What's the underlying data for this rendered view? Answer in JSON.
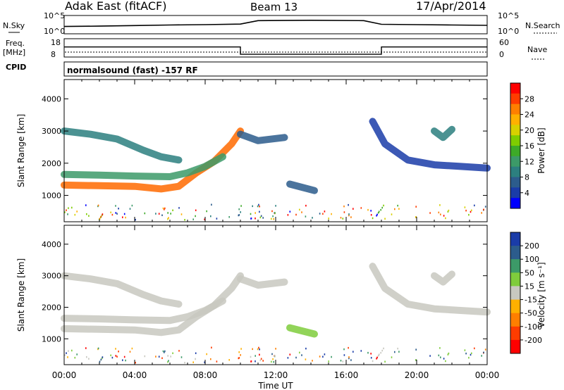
{
  "header": {
    "station": "Adak East (fitACF)",
    "beam": "Beam 13",
    "date": "17/Apr/2014"
  },
  "top_panels": {
    "nsky_label": "N.Sky",
    "nsky_ticks": [
      "10^5",
      "10^0"
    ],
    "nsearch_label": "N.Search",
    "nsearch_ticks": [
      "10^5",
      "10^0"
    ],
    "freq_label": "Freq.",
    "freq_unit": "[MHz]",
    "freq_ticks": [
      "18",
      "8"
    ],
    "nave_label": "Nave",
    "nave_ticks": [
      "60",
      "0"
    ],
    "cpid_label": "CPID",
    "cpid_text": "normalsound (fast) -157 RF"
  },
  "chart_data": [
    {
      "type": "heatmap",
      "name": "power",
      "ylabel": "Slant Range [km]",
      "yticks": [
        "4000",
        "3000",
        "2000",
        "1000"
      ],
      "ytick_values": [
        4000,
        3000,
        2000,
        1000
      ],
      "ylim": [
        180,
        4600
      ],
      "xlim": [
        0,
        24
      ],
      "colorbar": {
        "label": "Power [dB]",
        "ticks": [
          "28",
          "24",
          "20",
          "16",
          "12",
          "8",
          "4"
        ],
        "colors": [
          "#ff0000",
          "#ff3c00",
          "#ff7f00",
          "#ffb000",
          "#d8d000",
          "#7fcc00",
          "#3daa28",
          "#3c9a68",
          "#2c7f7f",
          "#2c5c8c",
          "#1a3ca8",
          "#0000ff"
        ]
      },
      "echo_bands": [
        {
          "name": "low band",
          "points": [
            [
              0,
              1320
            ],
            [
              2,
              1300
            ],
            [
              4,
              1280
            ],
            [
              5.5,
              1200
            ],
            [
              6.5,
              1280
            ],
            [
              7.5,
              1700
            ],
            [
              8.5,
              2050
            ],
            [
              9.5,
              2600
            ],
            [
              10,
              3000
            ]
          ],
          "color": "#ff6a00"
        },
        {
          "name": "mid band",
          "points": [
            [
              0,
              1650
            ],
            [
              2,
              1630
            ],
            [
              4,
              1600
            ],
            [
              6,
              1580
            ],
            [
              7,
              1700
            ],
            [
              8,
              1900
            ],
            [
              9,
              2200
            ]
          ],
          "color": "#3c9a68"
        },
        {
          "name": "upper band",
          "points": [
            [
              0,
              3000
            ],
            [
              1.5,
              2900
            ],
            [
              3,
              2750
            ],
            [
              4.5,
              2400
            ],
            [
              5.5,
              2200
            ],
            [
              6.5,
              2100
            ]
          ],
          "color": "#2c7f7f"
        },
        {
          "name": "post-dusk",
          "points": [
            [
              10,
              2900
            ],
            [
              11,
              2700
            ],
            [
              12.5,
              2800
            ]
          ],
          "color": "#2c5c8c"
        },
        {
          "name": "evening decay",
          "points": [
            [
              17.5,
              3300
            ],
            [
              18.2,
              2600
            ],
            [
              19.5,
              2100
            ],
            [
              21,
              1950
            ],
            [
              22.5,
              1900
            ],
            [
              24,
              1850
            ]
          ],
          "color": "#1a3ca8"
        },
        {
          "name": "patch",
          "points": [
            [
              12.8,
              1350
            ],
            [
              14.2,
              1150
            ]
          ],
          "color": "#2c5c8c"
        },
        {
          "name": "late arc",
          "points": [
            [
              21,
              3000
            ],
            [
              21.5,
              2800
            ],
            [
              22,
              3050
            ]
          ],
          "color": "#2c7f7f"
        }
      ]
    },
    {
      "type": "heatmap",
      "name": "velocity",
      "ylabel": "Slant Range [km]",
      "yticks": [
        "4000",
        "3000",
        "2000",
        "1000"
      ],
      "ytick_values": [
        4000,
        3000,
        2000,
        1000
      ],
      "ylim": [
        180,
        4600
      ],
      "xlim": [
        0,
        24
      ],
      "xlabel": "Time UT",
      "xticks": [
        "00:00",
        "04:00",
        "08:00",
        "12:00",
        "16:00",
        "20:00",
        "00:00"
      ],
      "xtick_values": [
        0,
        4,
        8,
        12,
        16,
        20,
        24
      ],
      "colorbar": {
        "label": "Velocity [m s⁻¹]",
        "ticks": [
          "200",
          "100",
          "50",
          "15",
          "-15",
          "-50",
          "-100",
          "-200"
        ],
        "colors": [
          "#1a3ca8",
          "#2c5c8c",
          "#3c9a68",
          "#7fcc3c",
          "#c8c8c0",
          "#ffb000",
          "#ff7f00",
          "#ff3c00",
          "#ff0000"
        ]
      },
      "echo_bands": [
        {
          "name": "low band",
          "points": [
            [
              0,
              1320
            ],
            [
              2,
              1300
            ],
            [
              4,
              1280
            ],
            [
              5.5,
              1200
            ],
            [
              6.5,
              1280
            ],
            [
              7.5,
              1700
            ],
            [
              8.5,
              2050
            ],
            [
              9.5,
              2600
            ],
            [
              10,
              3000
            ]
          ],
          "color": "#c8c8c0"
        },
        {
          "name": "mid band",
          "points": [
            [
              0,
              1650
            ],
            [
              2,
              1630
            ],
            [
              4,
              1600
            ],
            [
              6,
              1580
            ],
            [
              7,
              1700
            ],
            [
              8,
              1900
            ],
            [
              9,
              2200
            ]
          ],
          "color": "#c8c8c0"
        },
        {
          "name": "upper band",
          "points": [
            [
              0,
              3000
            ],
            [
              1.5,
              2900
            ],
            [
              3,
              2750
            ],
            [
              4.5,
              2400
            ],
            [
              5.5,
              2200
            ],
            [
              6.5,
              2100
            ]
          ],
          "color": "#c8c8c0"
        },
        {
          "name": "post-dusk",
          "points": [
            [
              10,
              2900
            ],
            [
              11,
              2700
            ],
            [
              12.5,
              2800
            ]
          ],
          "color": "#c8c8c0"
        },
        {
          "name": "evening decay",
          "points": [
            [
              17.5,
              3300
            ],
            [
              18.2,
              2600
            ],
            [
              19.5,
              2100
            ],
            [
              21,
              1950
            ],
            [
              22.5,
              1900
            ],
            [
              24,
              1850
            ]
          ],
          "color": "#c8c8c0"
        },
        {
          "name": "patch",
          "points": [
            [
              12.8,
              1350
            ],
            [
              14.2,
              1150
            ]
          ],
          "color": "#7fcc3c"
        },
        {
          "name": "late arc",
          "points": [
            [
              21,
              3000
            ],
            [
              21.5,
              2800
            ],
            [
              22,
              3050
            ]
          ],
          "color": "#c8c8c0"
        }
      ]
    }
  ],
  "freq_series": {
    "x": [
      0,
      10,
      10,
      18,
      18,
      24
    ],
    "y": [
      13.5,
      13.5,
      9.5,
      9.5,
      13.5,
      13.5
    ]
  },
  "nsky_series": {
    "x": [
      0,
      2,
      4,
      6,
      8,
      10,
      11,
      14,
      17,
      18,
      20,
      22,
      24
    ],
    "y": [
      0.4,
      0.42,
      0.45,
      0.48,
      0.5,
      0.53,
      0.72,
      0.74,
      0.72,
      0.52,
      0.5,
      0.48,
      0.46
    ]
  }
}
